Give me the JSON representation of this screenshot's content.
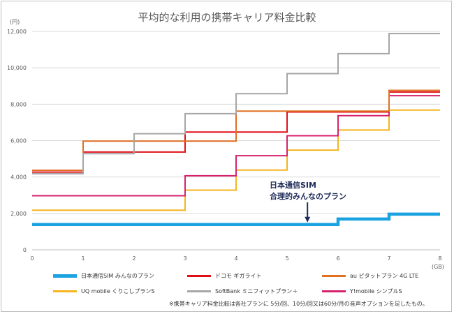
{
  "chart_data": {
    "type": "line",
    "title": "平均的な利用の携帯キャリア料金比較",
    "ylabel": "(円)",
    "xlabel": "(GB)",
    "ylim": [
      0,
      12000
    ],
    "xlim": [
      0,
      8
    ],
    "yticks": [
      0,
      2000,
      4000,
      6000,
      8000,
      10000,
      12000
    ],
    "ytick_labels": [
      "0",
      "2,000",
      "4,000",
      "6,000",
      "8,000",
      "10,000",
      "12,000"
    ],
    "xticks": [
      0,
      1,
      2,
      3,
      4,
      5,
      6,
      7,
      8
    ],
    "xtick_labels": [
      "0",
      "1",
      "2",
      "3",
      "4",
      "5",
      "6",
      "7",
      "8"
    ],
    "grid": true,
    "legend_position": "bottom",
    "series": [
      {
        "name": "日本通信SIM みんなのプラン",
        "color": "#1aa3e0",
        "width": 4.5,
        "x": [
          0,
          1,
          2,
          3,
          4,
          5,
          6,
          7,
          8
        ],
        "values": [
          1390,
          1390,
          1390,
          1390,
          1390,
          1390,
          1690,
          1960,
          1960
        ]
      },
      {
        "name": "ドコモ ギガライト",
        "color": "#e0101a",
        "width": 2,
        "x": [
          0,
          1,
          2,
          3,
          4,
          5,
          6,
          7,
          8
        ],
        "values": [
          4270,
          5370,
          5370,
          6470,
          6470,
          7570,
          7570,
          8670,
          8670
        ]
      },
      {
        "name": "au ピタットプラン 4G LTE",
        "color": "#e07022",
        "width": 2,
        "x": [
          0,
          1,
          2,
          3,
          4,
          5,
          6,
          7,
          8
        ],
        "values": [
          4370,
          5970,
          5970,
          5970,
          7620,
          7620,
          7620,
          8760,
          8760
        ]
      },
      {
        "name": "UQ mobile くりこしプランS",
        "color": "#f4b51e",
        "width": 2,
        "x": [
          0,
          1,
          2,
          3,
          4,
          5,
          6,
          7,
          8
        ],
        "values": [
          2178,
          2178,
          2178,
          3278,
          4378,
          5478,
          6578,
          7678,
          7678
        ]
      },
      {
        "name": "SoftBank ミニフィットプラン＋",
        "color": "#a6a6a6",
        "width": 2,
        "x": [
          0,
          1,
          2,
          3,
          4,
          5,
          6,
          7,
          8
        ],
        "values": [
          4180,
          5280,
          6380,
          7480,
          8580,
          9680,
          10780,
          11880,
          11880
        ]
      },
      {
        "name": "Y!mobile シンプルS",
        "color": "#d6226d",
        "width": 2,
        "x": [
          0,
          1,
          2,
          3,
          4,
          5,
          6,
          7,
          8
        ],
        "values": [
          2970,
          2970,
          2970,
          4070,
          5170,
          6270,
          7370,
          8470,
          8470
        ]
      }
    ],
    "annotation": {
      "lines": [
        "日本通信SIM",
        "合理的みんなのプラン"
      ],
      "x": 5.4,
      "y": 1390
    }
  },
  "footnote": "※携帯キャリア料金比較は各社プランに 5分/回、10分/回又は60分/月の音声オプションを足したもの。"
}
